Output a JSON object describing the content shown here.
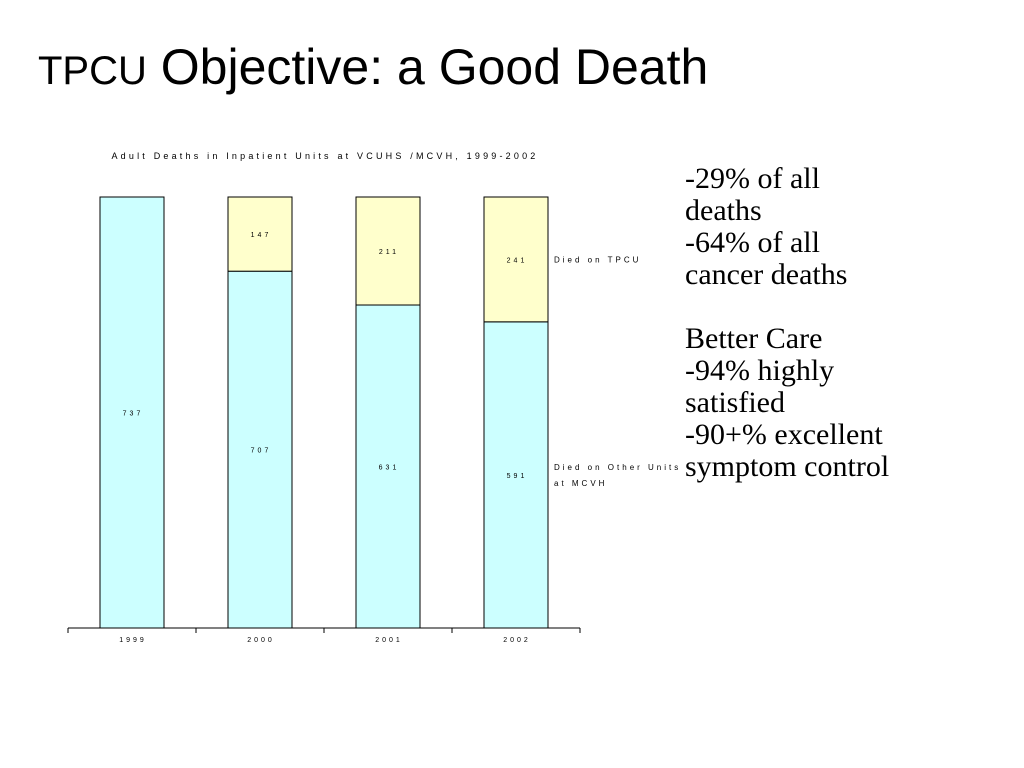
{
  "slide": {
    "title_prefix": "TPCU",
    "title_main": " Objective: a Good Death"
  },
  "notes": {
    "lines": [
      "-29% of all",
      "deaths",
      "-64% of all",
      "cancer deaths",
      "",
      "Better Care",
      "-94% highly",
      "satisfied",
      "-90+% excellent",
      "symptom control"
    ]
  },
  "chart_data": {
    "type": "bar",
    "stacked": true,
    "title": "Adult Deaths in Inpatient Units at VCUHS /MCVH, 1999-2002",
    "xlabel": "",
    "ylabel": "",
    "categories": [
      "1999",
      "2000",
      "2001",
      "2002"
    ],
    "series": [
      {
        "name": "Died on Other Units at MCVH",
        "legend_lines": [
          "Died on Other Units",
          "at MCVH"
        ],
        "values": [
          737,
          707,
          631,
          591
        ],
        "color": "#ccffff"
      },
      {
        "name": "Died on TPCU",
        "legend_lines": [
          "Died on TPCU"
        ],
        "values": [
          0,
          147,
          211,
          241
        ],
        "color": "#ffffcc"
      }
    ],
    "value_scale": "percent-of-total",
    "grid": false,
    "legend_position": "right"
  }
}
